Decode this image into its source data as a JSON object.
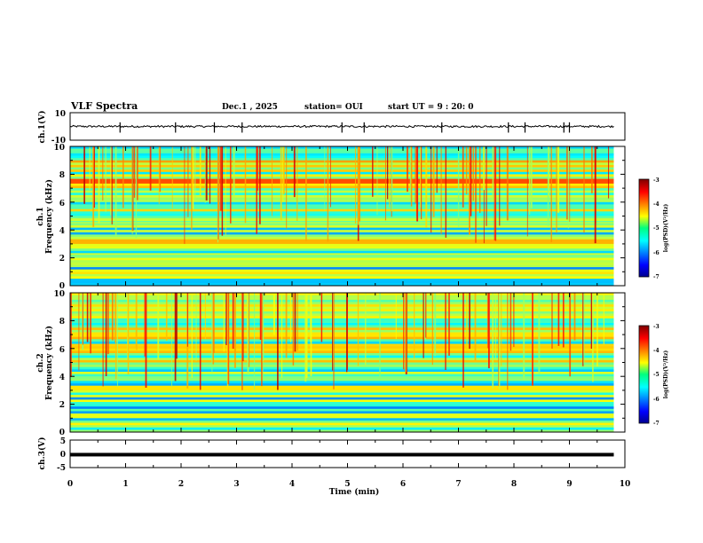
{
  "header": {
    "title": "VLF Spectra",
    "date": "Dec.1 , 2025",
    "station": "station= OUI",
    "start": "start  UT =   9 : 20: 0"
  },
  "chart_data": [
    {
      "type": "line",
      "name": "ch1-waveform",
      "ylabel": "ch.1(V)",
      "ylim": [
        -10,
        10
      ],
      "yticks": [
        "10",
        "-10"
      ],
      "xlim": [
        0,
        10
      ],
      "baseline": 0,
      "spikes_min": [
        0.9,
        1.9,
        2.6,
        3.1,
        4.9,
        5.3,
        6.7,
        7.9,
        8.2,
        8.9,
        9.0
      ]
    },
    {
      "type": "heatmap",
      "name": "ch1-spectrogram",
      "ylabel": "ch.1",
      "ylabel2": "Frequency  (kHz)",
      "ylim": [
        0,
        10
      ],
      "yticks": [
        "0",
        "2",
        "4",
        "6",
        "8",
        "10"
      ],
      "xlim": [
        0,
        10
      ],
      "data_end_min": 9.8,
      "bands_khz": [
        {
          "f": 0.6,
          "level": -4.5
        },
        {
          "f": 1.6,
          "level": -4.8
        },
        {
          "f": 2.2,
          "level": -5.0
        },
        {
          "f": 2.9,
          "level": -4.6
        },
        {
          "f": 3.2,
          "level": -4.2
        },
        {
          "f": 4.6,
          "level": -5.2
        },
        {
          "f": 7.5,
          "level": -3.8
        }
      ],
      "colorbar": {
        "label": "log(PSD)(V²/Hz)",
        "ticks": [
          "-3",
          "-4",
          "-5",
          "-6",
          "-7"
        ],
        "range": [
          -7,
          -3
        ]
      }
    },
    {
      "type": "heatmap",
      "name": "ch2-spectrogram",
      "ylabel": "ch.2",
      "ylabel2": "Frequency  (kHz)",
      "ylim": [
        0,
        10
      ],
      "yticks": [
        "0",
        "2",
        "4",
        "6",
        "8",
        "10"
      ],
      "xlim": [
        0,
        10
      ],
      "data_end_min": 9.8,
      "bands_khz": [
        {
          "f": 1.2,
          "level": -4.6
        },
        {
          "f": 3.2,
          "level": -4.4
        },
        {
          "f": 6.1,
          "level": -4.3
        },
        {
          "f": 7.0,
          "level": -4.4
        }
      ],
      "colorbar": {
        "label": "log(PSD)(V²/Hz)",
        "ticks": [
          "-3",
          "-4",
          "-5",
          "-6",
          "-7"
        ],
        "range": [
          -7,
          -3
        ]
      }
    },
    {
      "type": "line",
      "name": "ch3-waveform",
      "ylabel": "ch.3(V)",
      "ylim": [
        -5,
        5
      ],
      "yticks": [
        "5",
        "0",
        "-5"
      ],
      "xlim": [
        0,
        10
      ],
      "baseline": -0.3,
      "xlabel": "Time  (min)",
      "xticks": [
        "0",
        "1",
        "2",
        "3",
        "4",
        "5",
        "6",
        "7",
        "8",
        "9",
        "10"
      ]
    }
  ]
}
